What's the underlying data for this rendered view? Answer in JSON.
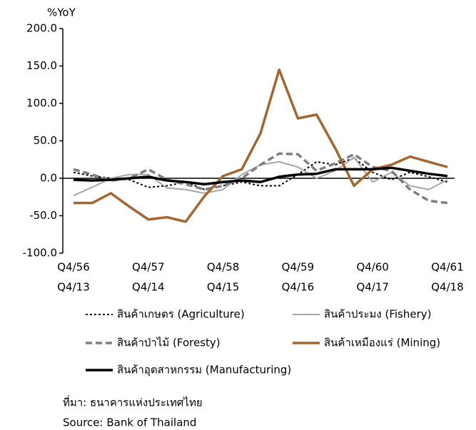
{
  "chart_data": {
    "type": "line",
    "y_axis_label": "%YoY",
    "categories": [
      "Q4/56",
      null,
      null,
      null,
      "Q4/57",
      null,
      null,
      null,
      "Q4/58",
      null,
      null,
      null,
      "Q4/59",
      null,
      null,
      null,
      "Q4/60",
      null,
      null,
      null,
      "Q4/61"
    ],
    "categories_secondary": [
      "Q4/13",
      null,
      null,
      null,
      "Q4/14",
      null,
      null,
      null,
      "Q4/15",
      null,
      null,
      null,
      "Q4/16",
      null,
      null,
      null,
      "Q4/17",
      null,
      null,
      null,
      "Q4/18"
    ],
    "ylim": [
      -100,
      200
    ],
    "yticks": [
      {
        "value": -100,
        "label": "-100.0"
      },
      {
        "value": -50,
        "label": "-50.0"
      },
      {
        "value": 0,
        "label": "0.0"
      },
      {
        "value": 50,
        "label": "50.0"
      },
      {
        "value": 100,
        "label": "100.0"
      },
      {
        "value": 150,
        "label": "150.0"
      },
      {
        "value": 200,
        "label": "200.0"
      }
    ],
    "grid": false,
    "series": [
      {
        "name": "สินค้าเกษตร (Agriculture)",
        "color": "#000000",
        "dash": "dotted",
        "width": 2,
        "values": [
          8,
          3,
          0,
          -2,
          -12,
          -10,
          -5,
          -15,
          -10,
          -5,
          -10,
          -10,
          5,
          22,
          18,
          27,
          8,
          -2,
          8,
          2,
          -5
        ]
      },
      {
        "name": "สินค้าประมง (Fishery)",
        "color": "#a6a6a6",
        "dash": "solid",
        "width": 2,
        "values": [
          -23,
          -12,
          0,
          5,
          5,
          -13,
          -15,
          -20,
          -15,
          5,
          18,
          22,
          15,
          0,
          10,
          28,
          -5,
          8,
          -10,
          -15,
          -2
        ]
      },
      {
        "name": "สินค้าป่าไม้ (Foresty)",
        "color": "#7f7f7f",
        "dash": "dashed",
        "width": 3.5,
        "values": [
          12,
          5,
          -3,
          0,
          12,
          -2,
          -8,
          -15,
          -10,
          0,
          18,
          33,
          32,
          10,
          20,
          32,
          15,
          10,
          -15,
          -30,
          -33
        ]
      },
      {
        "name": "สินค้าเหมืองแร่ (Mining)",
        "color": "#a5652c",
        "dash": "solid",
        "width": 3.5,
        "values": [
          -33,
          -33,
          -20,
          -38,
          -55,
          -52,
          -58,
          -24,
          3,
          12,
          60,
          145,
          80,
          85,
          40,
          -10,
          12,
          18,
          29,
          22,
          15
        ]
      },
      {
        "name": "สินค้าอุตสาหกรรม (Manufacturing)",
        "color": "#000000",
        "dash": "solid",
        "width": 3.5,
        "values": [
          -2,
          -3,
          -2,
          0,
          2,
          -3,
          -5,
          -8,
          -5,
          -3,
          -5,
          2,
          5,
          6,
          12,
          12,
          12,
          14,
          10,
          6,
          3
        ]
      }
    ]
  },
  "source": {
    "thai": "ที่มา: ธนาคารแห่งประเทศไทย",
    "english": "Source: Bank of Thailand"
  }
}
